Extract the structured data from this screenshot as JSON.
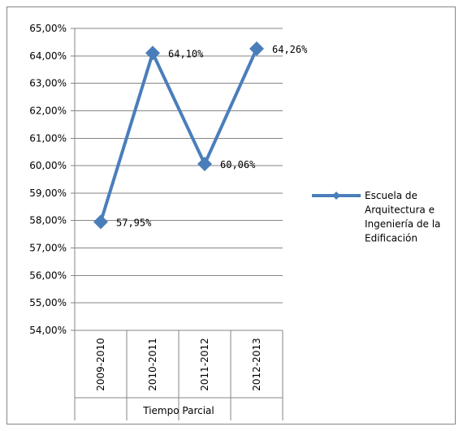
{
  "chart_data": {
    "type": "line",
    "categories": [
      "2009-2010",
      "2010-2011",
      "2011-2012",
      "2012-2013"
    ],
    "group_label": "Tiempo Parcial",
    "series": [
      {
        "name": "Escuela de Arquitectura e Ingeniería de la Edificación",
        "values": [
          57.95,
          64.1,
          60.06,
          64.26
        ],
        "labels": [
          "57,95%",
          "64,10%",
          "60,06%",
          "64,26%"
        ],
        "color": "#4a7ebb"
      }
    ],
    "legend_lines": [
      "Escuela de",
      "Arquitectura e",
      "Ingeniería de la",
      "Edificación"
    ],
    "ylim": [
      54,
      65
    ],
    "y_ticks": [
      "54,00%",
      "55,00%",
      "56,00%",
      "57,00%",
      "58,00%",
      "59,00%",
      "60,00%",
      "61,00%",
      "62,00%",
      "63,00%",
      "64,00%",
      "65,00%"
    ],
    "grid": true,
    "legend_position": "right",
    "title": "",
    "xlabel": "",
    "ylabel": ""
  }
}
